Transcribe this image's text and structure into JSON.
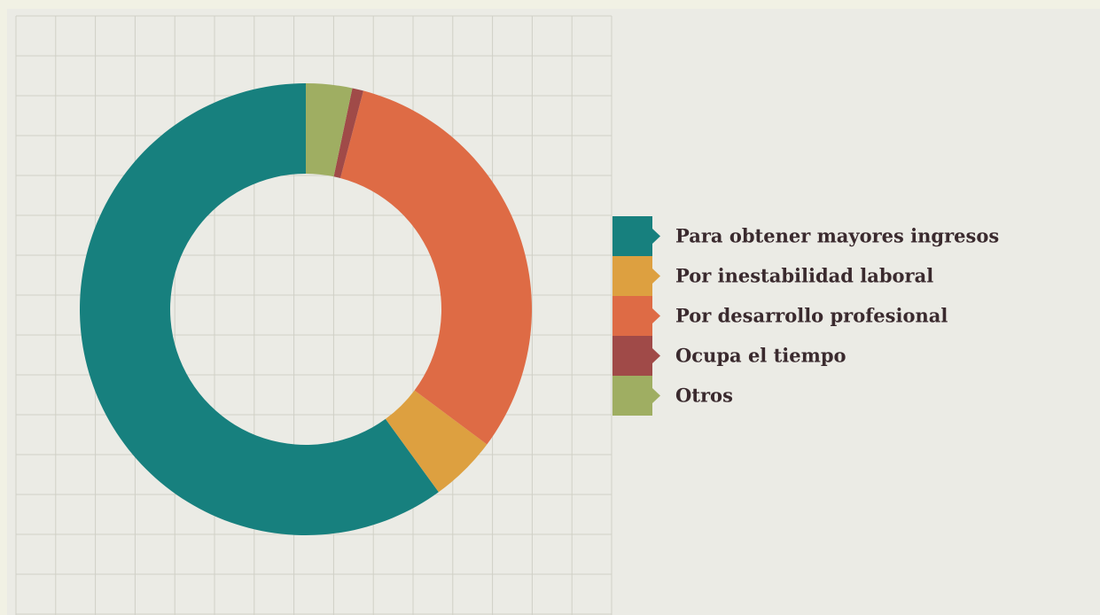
{
  "chart_data": {
    "type": "donut",
    "categories": [
      "Para obtener mayores ingresos",
      "Por inestabilidad laboral",
      "Por desarrollo profesional",
      "Ocupa el tiempo",
      "Otros"
    ],
    "values": [
      60,
      4.8,
      31.1,
      0.8,
      3.3
    ],
    "colors": [
      "#17807e",
      "#dda040",
      "#de6b45",
      "#a04a48",
      "#9fae62"
    ],
    "direction": "counterclockwise",
    "legend": "right"
  }
}
